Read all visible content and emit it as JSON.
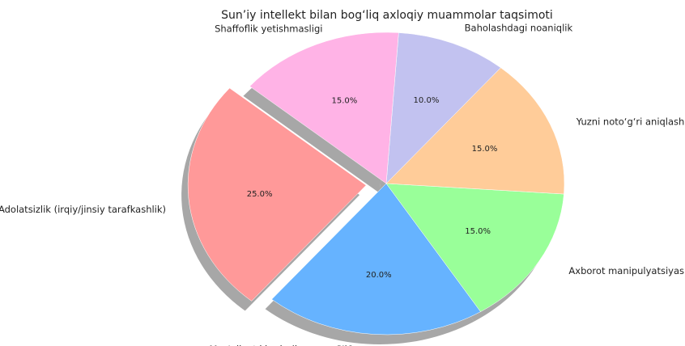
{
  "chart_data": {
    "type": "pie",
    "title": "Sun’iy intellekt bilan bog‘liq axloqiy muammolar taqsimoti",
    "categories": [
      "Adolatsizlik (irqiy/jinsiy tarafkashlik)",
      "Mas'uliyat kimda (inson vs SI)?",
      "Axborot manipulyatsiyasi",
      "Yuzni noto‘g‘ri aniqlash",
      "Baholashdagi noaniqlik",
      "Shaffoflik yetishmasligi"
    ],
    "values": [
      25.0,
      20.0,
      15.0,
      15.0,
      10.0,
      15.0
    ],
    "percent_labels": [
      "25.0%",
      "20.0%",
      "15.0%",
      "15.0%",
      "10.0%",
      "15.0%"
    ],
    "colors": [
      "#ff9999",
      "#66b3ff",
      "#99ff99",
      "#ffcc99",
      "#c2c2f0",
      "#ffb3e6"
    ],
    "start_angle_deg": 140,
    "direction": "counterclockwise",
    "exploded": [
      "Adolatsizlik (irqiy/jinsiy tarafkashlik)"
    ],
    "shadow": true,
    "legend": "none"
  }
}
